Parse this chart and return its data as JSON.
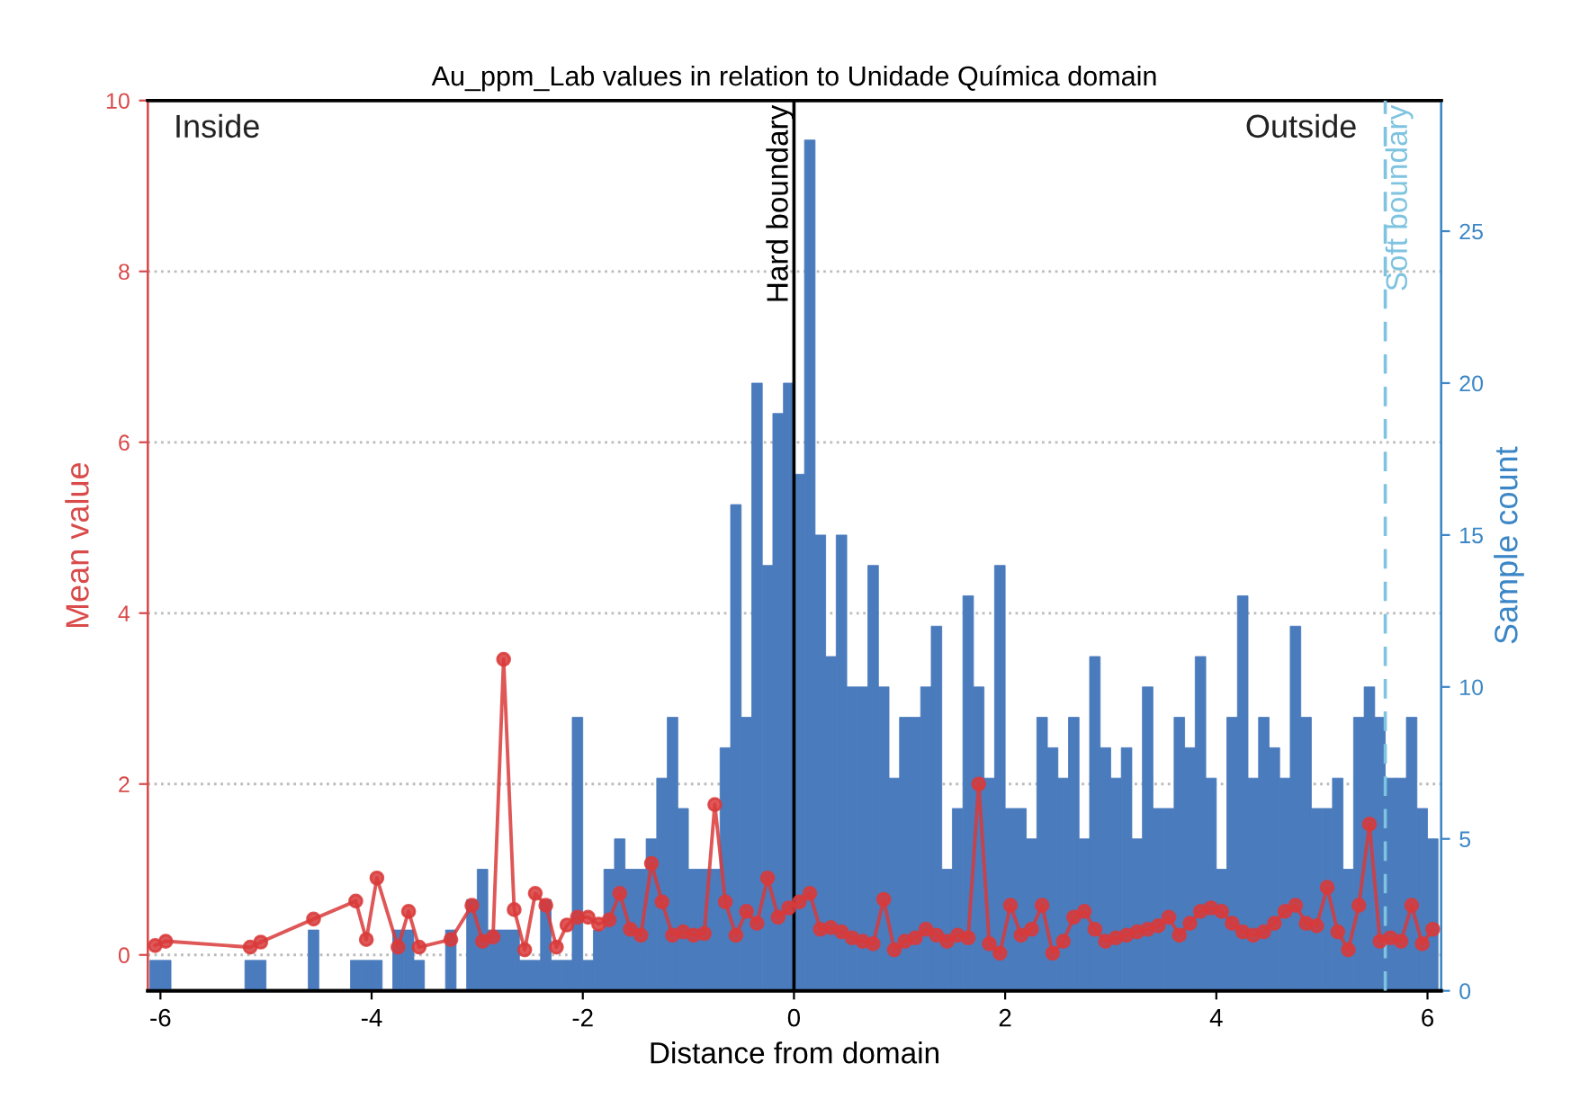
{
  "chart_data": {
    "type": "histogram",
    "title": "Au_ppm_Lab values in relation to Unidade Química domain",
    "xlabel": "Distance from domain",
    "ylabel": "Mean value",
    "y2label": "Sample count",
    "xlim": [
      -6.12,
      6.13
    ],
    "xticks": [
      -6,
      -4,
      -2,
      0,
      2,
      4,
      6
    ],
    "ylim": [
      -0.42,
      10
    ],
    "yticks": [
      0,
      2,
      4,
      6,
      8,
      10
    ],
    "y2lim": [
      0,
      29.3
    ],
    "y2ticks": [
      0,
      5,
      10,
      15,
      20,
      25
    ],
    "grid": "y",
    "annotations": [
      "Inside",
      "Outside"
    ],
    "ref_lines": [
      {
        "axis": "x",
        "value": 0,
        "label": "Hard boundary",
        "color": "#000000",
        "line_style": "solid"
      },
      {
        "axis": "x",
        "value": 5.6,
        "label": "Soft boundary",
        "color": "#7ec3e0",
        "line_style": "dashed"
      }
    ],
    "series": [
      {
        "axis": "y2",
        "color": "#4a7bbd",
        "bins": [
          -6.1,
          -6.0,
          -5.9,
          -5.8,
          -5.7,
          -5.6,
          -5.5,
          -5.4,
          -5.3,
          -5.2,
          -5.1,
          -5.0,
          -4.9,
          -4.8,
          -4.7,
          -4.6,
          -4.5,
          -4.4,
          -4.3,
          -4.2,
          -4.1,
          -4.0,
          -3.9,
          -3.8,
          -3.7,
          -3.6,
          -3.5,
          -3.4,
          -3.3,
          -3.2,
          -3.1,
          -3.0,
          -2.9,
          -2.8,
          -2.7,
          -2.6,
          -2.5,
          -2.4,
          -2.3,
          -2.2,
          -2.1,
          -2.0,
          -1.9,
          -1.8,
          -1.7,
          -1.6,
          -1.5,
          -1.4,
          -1.3,
          -1.2,
          -1.1,
          -1.0,
          -0.9,
          -0.8,
          -0.7,
          -0.6,
          -0.5,
          -0.4,
          -0.3,
          -0.2,
          -0.1,
          0,
          0.1,
          0.2,
          0.3,
          0.4,
          0.5,
          0.6,
          0.7,
          0.8,
          0.9,
          1.0,
          1.1,
          1.2,
          1.3,
          1.4,
          1.5,
          1.6,
          1.7,
          1.8,
          1.9,
          2.0,
          2.1,
          2.2,
          2.3,
          2.4,
          2.5,
          2.6,
          2.7,
          2.8,
          2.9,
          3.0,
          3.1,
          3.2,
          3.3,
          3.4,
          3.5,
          3.6,
          3.7,
          3.8,
          3.9,
          4.0,
          4.1,
          4.2,
          4.3,
          4.4,
          4.5,
          4.6,
          4.7,
          4.8,
          4.9,
          5.0,
          5.1,
          5.2,
          5.3,
          5.4,
          5.5,
          5.6,
          5.7,
          5.8,
          5.9,
          6.0,
          6.1
        ],
        "values": [
          1,
          1,
          0,
          0,
          0,
          0,
          0,
          0,
          0,
          1,
          1,
          0,
          0,
          0,
          0,
          2,
          0,
          0,
          0,
          1,
          1,
          1,
          0,
          2,
          2,
          1,
          0,
          0,
          2,
          0,
          3,
          4,
          2,
          2,
          2,
          1,
          1,
          3,
          1,
          1,
          9,
          1,
          2,
          4,
          5,
          4,
          4,
          5,
          7,
          9,
          6,
          4,
          4,
          4,
          8,
          16,
          9,
          20,
          14,
          19,
          20,
          17,
          28,
          15,
          11,
          15,
          10,
          10,
          14,
          10,
          7,
          9,
          9,
          10,
          12,
          4,
          6,
          13,
          10,
          7,
          14,
          6,
          6,
          5,
          9,
          8,
          7,
          9,
          5,
          11,
          8,
          7,
          8,
          5,
          10,
          6,
          6,
          9,
          8,
          11,
          7,
          4,
          9,
          13,
          7,
          9,
          8,
          7,
          12,
          9,
          6,
          6,
          7,
          4,
          9,
          10,
          9,
          7,
          7,
          9,
          6,
          5
        ]
      },
      {
        "type": "line",
        "axis": "y",
        "color": "#d93a3a",
        "marker": "circle",
        "line_style": "solid",
        "x": [
          -6.05,
          -5.95,
          -5.15,
          -5.05,
          -4.55,
          -4.15,
          -4.05,
          -3.95,
          -3.75,
          -3.65,
          -3.55,
          -3.25,
          -3.05,
          -2.95,
          -2.85,
          -2.75,
          -2.65,
          -2.55,
          -2.45,
          -2.35,
          -2.25,
          -2.15,
          -2.05,
          -1.95,
          -1.85,
          -1.75,
          -1.65,
          -1.55,
          -1.45,
          -1.35,
          -1.25,
          -1.15,
          -1.05,
          -0.95,
          -0.85,
          -0.75,
          -0.65,
          -0.55,
          -0.45,
          -0.35,
          -0.25,
          -0.15,
          -0.05,
          0.05,
          0.15,
          0.25,
          0.35,
          0.45,
          0.55,
          0.65,
          0.75,
          0.85,
          0.95,
          1.05,
          1.15,
          1.25,
          1.35,
          1.45,
          1.55,
          1.65,
          1.75,
          1.85,
          1.95,
          2.05,
          2.15,
          2.25,
          2.35,
          2.45,
          2.55,
          2.65,
          2.75,
          2.85,
          2.95,
          3.05,
          3.15,
          3.25,
          3.35,
          3.45,
          3.55,
          3.65,
          3.75,
          3.85,
          3.95,
          4.05,
          4.15,
          4.25,
          4.35,
          4.45,
          4.55,
          4.65,
          4.75,
          4.85,
          4.95,
          5.05,
          5.15,
          5.25,
          5.35,
          5.45,
          5.55,
          5.65,
          5.75,
          5.85,
          5.95,
          6.05
        ],
        "values": [
          0.11,
          0.16,
          0.09,
          0.15,
          0.42,
          0.63,
          0.18,
          0.9,
          0.09,
          0.51,
          0.09,
          0.18,
          0.58,
          0.16,
          0.21,
          3.46,
          0.53,
          0.06,
          0.72,
          0.58,
          0.09,
          0.35,
          0.44,
          0.44,
          0.36,
          0.41,
          0.72,
          0.3,
          0.23,
          1.07,
          0.62,
          0.23,
          0.27,
          0.23,
          0.25,
          1.76,
          0.62,
          0.23,
          0.51,
          0.37,
          0.9,
          0.44,
          0.55,
          0.62,
          0.72,
          0.3,
          0.32,
          0.27,
          0.2,
          0.16,
          0.13,
          0.65,
          0.06,
          0.16,
          0.2,
          0.3,
          0.23,
          0.16,
          0.23,
          0.2,
          2.0,
          0.13,
          0.02,
          0.58,
          0.23,
          0.3,
          0.58,
          0.02,
          0.16,
          0.44,
          0.51,
          0.3,
          0.16,
          0.2,
          0.23,
          0.27,
          0.3,
          0.34,
          0.44,
          0.23,
          0.37,
          0.51,
          0.55,
          0.51,
          0.37,
          0.27,
          0.23,
          0.27,
          0.37,
          0.51,
          0.58,
          0.37,
          0.34,
          0.79,
          0.27,
          0.06,
          0.58,
          1.53,
          0.16,
          0.2,
          0.16,
          0.58,
          0.13,
          0.3
        ]
      }
    ]
  }
}
